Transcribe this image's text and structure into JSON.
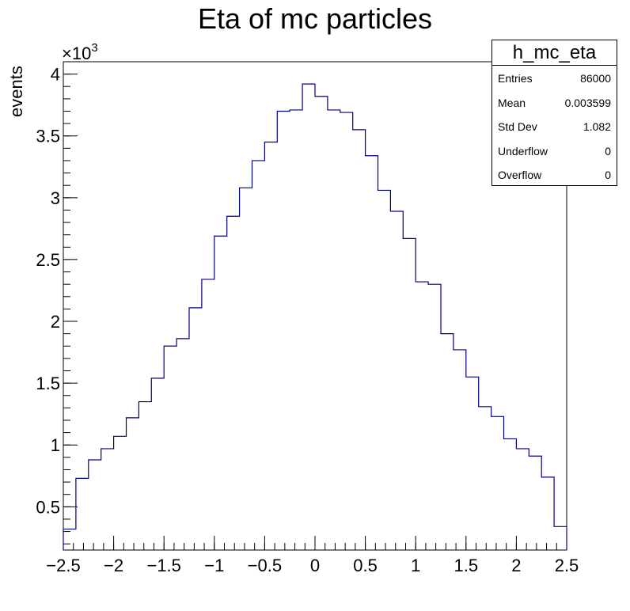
{
  "chart_data": {
    "type": "histogram",
    "title": "Eta of mc particles",
    "xlabel": "",
    "ylabel": "events",
    "y_multiplier": "×10",
    "y_multiplier_exp": "3",
    "xlim": [
      -2.5,
      2.5
    ],
    "ylim": [
      0.15,
      4.1
    ],
    "bin_edges": [
      -2.5,
      -2.375,
      -2.25,
      -2.125,
      -2.0,
      -1.875,
      -1.75,
      -1.625,
      -1.5,
      -1.375,
      -1.25,
      -1.125,
      -1.0,
      -0.875,
      -0.75,
      -0.625,
      -0.5,
      -0.375,
      -0.25,
      -0.125,
      0.0,
      0.125,
      0.25,
      0.375,
      0.5,
      0.625,
      0.75,
      0.875,
      1.0,
      1.125,
      1.25,
      1.375,
      1.5,
      1.625,
      1.75,
      1.875,
      2.0,
      2.125,
      2.25,
      2.375,
      2.5
    ],
    "values": [
      0.32,
      0.73,
      0.88,
      0.97,
      1.07,
      1.22,
      1.35,
      1.54,
      1.8,
      1.86,
      2.11,
      2.34,
      2.69,
      2.85,
      3.08,
      3.3,
      3.45,
      3.7,
      3.71,
      3.92,
      3.82,
      3.71,
      3.69,
      3.55,
      3.34,
      3.06,
      2.89,
      2.67,
      2.32,
      2.3,
      1.9,
      1.77,
      1.55,
      1.31,
      1.23,
      1.05,
      0.97,
      0.91,
      0.74,
      0.34
    ],
    "x_ticks": [
      -2.5,
      -2,
      -1.5,
      -1,
      -0.5,
      0,
      0.5,
      1,
      1.5,
      2,
      2.5
    ],
    "x_tick_labels": [
      "−2.5",
      "−2",
      "−1.5",
      "−1",
      "−0.5",
      "0",
      "0.5",
      "1",
      "1.5",
      "2",
      "2.5"
    ],
    "y_ticks": [
      0.5,
      1,
      1.5,
      2,
      2.5,
      3,
      3.5,
      4
    ],
    "y_tick_labels": [
      "0.5",
      "1",
      "1.5",
      "2",
      "2.5",
      "3",
      "3.5",
      "4"
    ],
    "line_color": "#00007f",
    "axis_color": "#000000"
  },
  "stats_box": {
    "title": "h_mc_eta",
    "rows": [
      {
        "label": "Entries",
        "value": "86000"
      },
      {
        "label": "Mean",
        "value": "0.003599"
      },
      {
        "label": "Std Dev",
        "value": "1.082"
      },
      {
        "label": "Underflow",
        "value": "0"
      },
      {
        "label": "Overflow",
        "value": "0"
      }
    ]
  }
}
